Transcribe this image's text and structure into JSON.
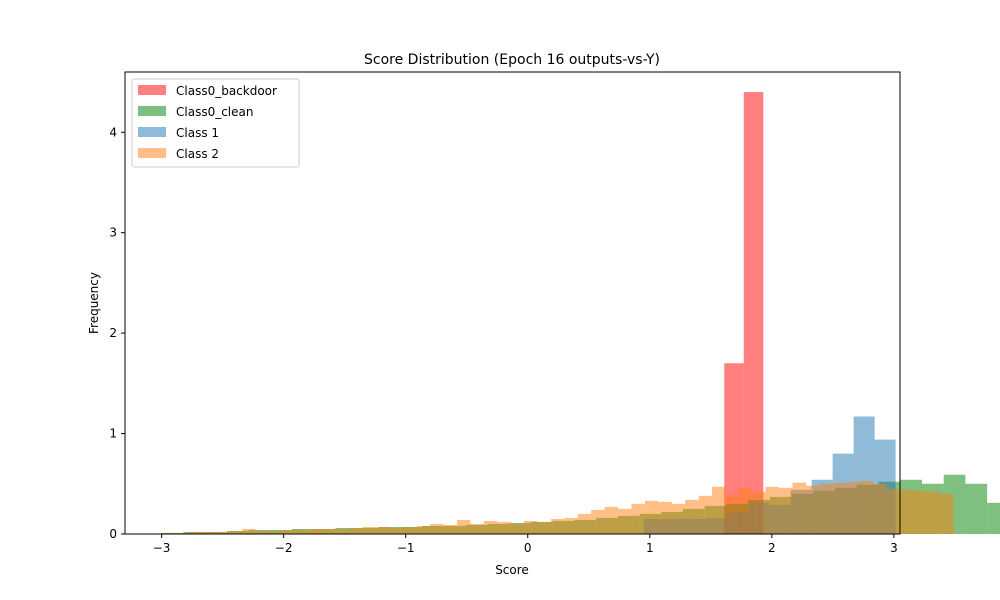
{
  "chart_data": {
    "type": "bar",
    "title": "Score Distribution (Epoch 16 outputs-vs-Y)",
    "xlabel": "Score",
    "ylabel": "Frequency",
    "xlim": [
      -3.3,
      3.05
    ],
    "ylim": [
      0,
      4.6
    ],
    "xticks": [
      -3,
      -2,
      -1,
      0,
      1,
      2,
      3
    ],
    "yticks": [
      0,
      1,
      2,
      3,
      4
    ],
    "xtick_labels": [
      "−3",
      "−2",
      "−1",
      "0",
      "1",
      "2",
      "3"
    ],
    "ytick_labels": [
      "0",
      "1",
      "2",
      "3",
      "4"
    ],
    "grid": false,
    "legend_position": "top-left",
    "series": [
      {
        "name": "Class0_backdoor",
        "color": "#ff0000",
        "alpha": 0.5,
        "bin_start": 1.45,
        "bin_width": 0.16,
        "values": [
          0.0,
          1.7,
          4.4
        ]
      },
      {
        "name": "Class0_clean",
        "color": "#008000",
        "alpha": 0.5,
        "bin_start": -3.0,
        "bin_width": 0.178,
        "values": [
          0.01,
          0.02,
          0.02,
          0.03,
          0.04,
          0.04,
          0.05,
          0.05,
          0.06,
          0.06,
          0.07,
          0.07,
          0.08,
          0.08,
          0.09,
          0.1,
          0.11,
          0.12,
          0.13,
          0.14,
          0.16,
          0.18,
          0.2,
          0.22,
          0.25,
          0.28,
          0.3,
          0.34,
          0.37,
          0.4,
          0.43,
          0.46,
          0.49,
          0.52,
          0.54,
          0.5,
          0.59,
          0.5,
          0.31
        ]
      },
      {
        "name": "Class 1",
        "color": "#1f77b4",
        "alpha": 0.5,
        "bin_start": 0.95,
        "bin_width": 0.172,
        "values": [
          0.15,
          0.15,
          0.15,
          0.16,
          0.22,
          0.31,
          0.29,
          0.44,
          0.54,
          0.8,
          1.17,
          0.94
        ]
      },
      {
        "name": "Class 2",
        "color": "#ff7f0e",
        "alpha": 0.5,
        "bin_start": -3.0,
        "bin_width": 0.11,
        "values": [
          0.01,
          0.01,
          0.02,
          0.02,
          0.02,
          0.03,
          0.05,
          0.03,
          0.03,
          0.04,
          0.04,
          0.05,
          0.05,
          0.05,
          0.06,
          0.07,
          0.07,
          0.06,
          0.07,
          0.08,
          0.1,
          0.09,
          0.14,
          0.1,
          0.13,
          0.12,
          0.1,
          0.13,
          0.12,
          0.15,
          0.16,
          0.2,
          0.24,
          0.27,
          0.25,
          0.3,
          0.33,
          0.32,
          0.3,
          0.34,
          0.38,
          0.47,
          0.39,
          0.46,
          0.42,
          0.47,
          0.46,
          0.51,
          0.48,
          0.5,
          0.51,
          0.52,
          0.53,
          0.5,
          0.45,
          0.44,
          0.43,
          0.42,
          0.4
        ]
      }
    ]
  }
}
